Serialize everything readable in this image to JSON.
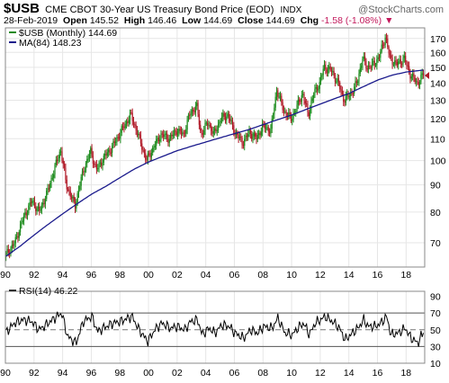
{
  "header": {
    "symbol": "$USB",
    "description": "CME CBOT 30-Year US Treasury Bond Price (EOD)",
    "exchange": "INDX",
    "brand": "@StockCharts.com",
    "date": "28-Feb-2019",
    "open_label": "Open",
    "open": "145.52",
    "high_label": "High",
    "high": "146.46",
    "low_label": "Low",
    "low": "144.69",
    "close_label": "Close",
    "close": "144.69",
    "chg_label": "Chg",
    "chg": "-1.58 (-1.08%)",
    "chg_arrow": "▼"
  },
  "legend": {
    "price_label": "$USB (Monthly) 144.69",
    "ma_label": "MA(84) 148.23",
    "rsi_label": "RSI(14) 46.22"
  },
  "colors": {
    "up": "#1b8a1b",
    "down": "#b01826",
    "ma": "#1a1a8c",
    "rsi": "#000000",
    "grid": "#e6e6e6",
    "negative": "#c2185b"
  },
  "chart_data": [
    {
      "type": "candlestick",
      "title": "$USB (Monthly)",
      "x_tick_labels": [
        "90",
        "92",
        "94",
        "96",
        "98",
        "00",
        "02",
        "04",
        "06",
        "08",
        "10",
        "12",
        "14",
        "16",
        "18"
      ],
      "x_tick_years": [
        1990,
        1992,
        1994,
        1996,
        1998,
        2000,
        2002,
        2004,
        2006,
        2008,
        2010,
        2012,
        2014,
        2016,
        2018
      ],
      "xlim": [
        1990.0,
        2019.3
      ],
      "y_scale": "log",
      "y_ticks": [
        70,
        80,
        90,
        100,
        110,
        120,
        130,
        140,
        150,
        160,
        170
      ],
      "ylim": [
        63,
        178
      ],
      "price_anchors": [
        [
          1990.0,
          66
        ],
        [
          1990.7,
          70
        ],
        [
          1991.3,
          78
        ],
        [
          1991.9,
          84
        ],
        [
          1992.4,
          80
        ],
        [
          1992.9,
          86
        ],
        [
          1993.4,
          95
        ],
        [
          1993.9,
          105
        ],
        [
          1994.3,
          90
        ],
        [
          1994.9,
          82
        ],
        [
          1995.5,
          96
        ],
        [
          1996.0,
          104
        ],
        [
          1996.4,
          96
        ],
        [
          1997.0,
          102
        ],
        [
          1997.5,
          106
        ],
        [
          1998.0,
          112
        ],
        [
          1998.8,
          122
        ],
        [
          1999.3,
          112
        ],
        [
          1999.9,
          100
        ],
        [
          2000.4,
          106
        ],
        [
          2000.9,
          112
        ],
        [
          2001.5,
          110
        ],
        [
          2002.0,
          114
        ],
        [
          2002.5,
          112
        ],
        [
          2002.9,
          122
        ],
        [
          2003.4,
          127
        ],
        [
          2003.7,
          112
        ],
        [
          2004.2,
          118
        ],
        [
          2004.6,
          112
        ],
        [
          2005.1,
          120
        ],
        [
          2005.6,
          122
        ],
        [
          2006.0,
          114
        ],
        [
          2006.6,
          108
        ],
        [
          2007.1,
          113
        ],
        [
          2007.6,
          110
        ],
        [
          2008.0,
          116
        ],
        [
          2008.6,
          114
        ],
        [
          2009.0,
          136
        ],
        [
          2009.5,
          124
        ],
        [
          2010.0,
          120
        ],
        [
          2010.4,
          126
        ],
        [
          2010.8,
          134
        ],
        [
          2011.2,
          122
        ],
        [
          2011.6,
          134
        ],
        [
          2012.0,
          140
        ],
        [
          2012.3,
          150
        ],
        [
          2012.8,
          148
        ],
        [
          2013.3,
          140
        ],
        [
          2013.7,
          130
        ],
        [
          2014.2,
          134
        ],
        [
          2014.6,
          140
        ],
        [
          2015.0,
          156
        ],
        [
          2015.3,
          150
        ],
        [
          2015.8,
          152
        ],
        [
          2016.2,
          158
        ],
        [
          2016.6,
          172
        ],
        [
          2016.9,
          156
        ],
        [
          2017.4,
          152
        ],
        [
          2017.9,
          156
        ],
        [
          2018.3,
          146
        ],
        [
          2018.8,
          140
        ],
        [
          2019.0,
          142
        ],
        [
          2019.2,
          144.69
        ]
      ],
      "ma_anchors": [
        [
          1990.0,
          66
        ],
        [
          1991.0,
          69
        ],
        [
          1992.0,
          72.5
        ],
        [
          1993.0,
          76
        ],
        [
          1994.0,
          79.5
        ],
        [
          1995.0,
          83
        ],
        [
          1996.0,
          86.5
        ],
        [
          1997.0,
          89.5
        ],
        [
          1998.0,
          93
        ],
        [
          1999.0,
          96.5
        ],
        [
          2000.0,
          99.5
        ],
        [
          2001.0,
          102
        ],
        [
          2002.0,
          104.5
        ],
        [
          2003.0,
          106.5
        ],
        [
          2004.0,
          108.5
        ],
        [
          2005.0,
          110.5
        ],
        [
          2006.0,
          112.5
        ],
        [
          2007.0,
          114.5
        ],
        [
          2008.0,
          117
        ],
        [
          2009.0,
          119.5
        ],
        [
          2010.0,
          122
        ],
        [
          2011.0,
          125
        ],
        [
          2012.0,
          128
        ],
        [
          2013.0,
          131
        ],
        [
          2014.0,
          134
        ],
        [
          2015.0,
          138
        ],
        [
          2016.0,
          142
        ],
        [
          2017.0,
          145
        ],
        [
          2018.0,
          147
        ],
        [
          2019.2,
          148.23
        ]
      ],
      "last_price": 144.69,
      "ma_last": 148.23
    },
    {
      "type": "line",
      "title": "RSI(14)",
      "y_ticks": [
        10,
        30,
        50,
        70,
        90
      ],
      "ylim": [
        10,
        96
      ],
      "bands": [
        30,
        70
      ],
      "midline": 50,
      "rsi_anchors": [
        [
          1990.0,
          47
        ],
        [
          1990.6,
          58
        ],
        [
          1991.2,
          62
        ],
        [
          1991.8,
          60
        ],
        [
          1992.3,
          50
        ],
        [
          1992.8,
          56
        ],
        [
          1993.4,
          64
        ],
        [
          1993.9,
          70
        ],
        [
          1994.3,
          42
        ],
        [
          1994.9,
          34
        ],
        [
          1995.4,
          60
        ],
        [
          1996.0,
          66
        ],
        [
          1996.4,
          48
        ],
        [
          1997.0,
          54
        ],
        [
          1997.5,
          58
        ],
        [
          1998.0,
          60
        ],
        [
          1998.8,
          66
        ],
        [
          1999.3,
          50
        ],
        [
          1999.9,
          36
        ],
        [
          2000.4,
          50
        ],
        [
          2000.9,
          58
        ],
        [
          2001.5,
          52
        ],
        [
          2002.0,
          54
        ],
        [
          2002.5,
          50
        ],
        [
          2002.9,
          60
        ],
        [
          2003.4,
          62
        ],
        [
          2003.7,
          44
        ],
        [
          2004.2,
          52
        ],
        [
          2004.6,
          46
        ],
        [
          2005.1,
          56
        ],
        [
          2005.6,
          54
        ],
        [
          2006.0,
          46
        ],
        [
          2006.6,
          40
        ],
        [
          2007.1,
          50
        ],
        [
          2007.6,
          46
        ],
        [
          2008.0,
          54
        ],
        [
          2008.6,
          52
        ],
        [
          2009.0,
          64
        ],
        [
          2009.5,
          46
        ],
        [
          2010.0,
          44
        ],
        [
          2010.4,
          52
        ],
        [
          2010.8,
          58
        ],
        [
          2011.2,
          44
        ],
        [
          2011.6,
          58
        ],
        [
          2012.0,
          62
        ],
        [
          2012.3,
          66
        ],
        [
          2012.8,
          60
        ],
        [
          2013.3,
          52
        ],
        [
          2013.7,
          38
        ],
        [
          2014.2,
          46
        ],
        [
          2014.6,
          52
        ],
        [
          2015.0,
          62
        ],
        [
          2015.3,
          54
        ],
        [
          2015.8,
          54
        ],
        [
          2016.2,
          58
        ],
        [
          2016.6,
          66
        ],
        [
          2016.9,
          44
        ],
        [
          2017.4,
          46
        ],
        [
          2017.9,
          52
        ],
        [
          2018.3,
          40
        ],
        [
          2018.8,
          34
        ],
        [
          2019.0,
          42
        ],
        [
          2019.2,
          46.22
        ]
      ],
      "last_value": 46.22
    }
  ]
}
